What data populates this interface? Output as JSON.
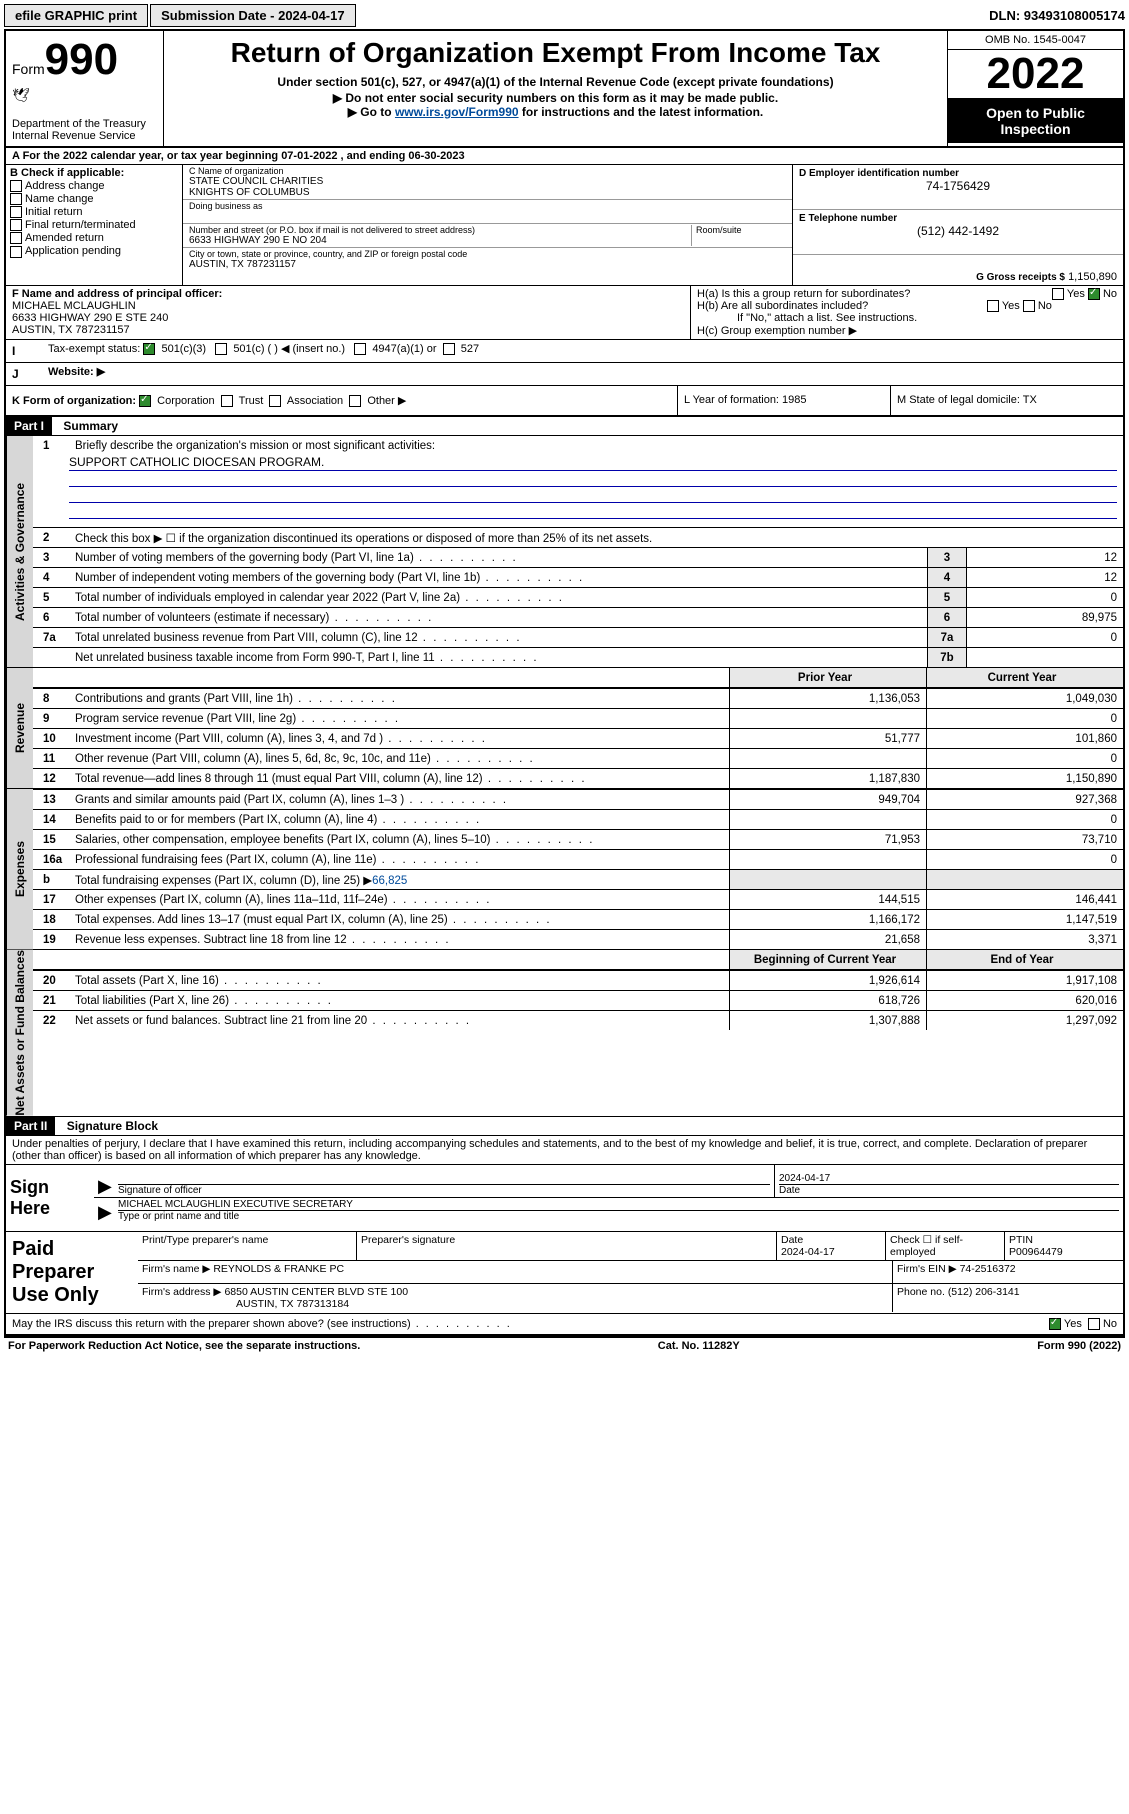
{
  "top": {
    "efile": "efile GRAPHIC print",
    "submission": "Submission Date - 2024-04-17",
    "dln": "DLN: 93493108005174"
  },
  "header": {
    "form_prefix": "Form",
    "form_number": "990",
    "title": "Return of Organization Exempt From Income Tax",
    "subtitle": "Under section 501(c), 527, or 4947(a)(1) of the Internal Revenue Code (except private foundations)",
    "note1": "▶ Do not enter social security numbers on this form as it may be made public.",
    "note2_pre": "▶ Go to ",
    "note2_link": "www.irs.gov/Form990",
    "note2_post": " for instructions and the latest information.",
    "dept": "Department of the Treasury",
    "irs": "Internal Revenue Service",
    "omb": "OMB No. 1545-0047",
    "year": "2022",
    "inspect1": "Open to Public",
    "inspect2": "Inspection"
  },
  "rowA": "A For the 2022 calendar year, or tax year beginning 07-01-2022   , and ending 06-30-2023",
  "sectionB": {
    "title": "B Check if applicable:",
    "items": [
      "Address change",
      "Name change",
      "Initial return",
      "Final return/terminated",
      "Amended return",
      "Application pending"
    ]
  },
  "org": {
    "c_label": "C Name of organization",
    "name1": "STATE COUNCIL CHARITIES",
    "name2": "KNIGHTS OF COLUMBUS",
    "dba_label": "Doing business as",
    "addr_label": "Number and street (or P.O. box if mail is not delivered to street address)",
    "room_label": "Room/suite",
    "addr": "6633 HIGHWAY 290 E NO 204",
    "city_label": "City or town, state or province, country, and ZIP or foreign postal code",
    "city": "AUSTIN, TX  787231157"
  },
  "right": {
    "d_label": "D Employer identification number",
    "ein": "74-1756429",
    "e_label": "E Telephone number",
    "phone": "(512) 442-1492",
    "g_label": "G Gross receipts $",
    "g_val": "1,150,890"
  },
  "f": {
    "label": "F Name and address of principal officer:",
    "name": "MICHAEL MCLAUGHLIN",
    "addr1": "6633 HIGHWAY 290 E STE 240",
    "addr2": "AUSTIN, TX  787231157"
  },
  "h": {
    "a": "H(a)  Is this a group return for subordinates?",
    "b": "H(b)  Are all subordinates included?",
    "note": "If \"No,\" attach a list. See instructions.",
    "c": "H(c)  Group exemption number ▶"
  },
  "i": {
    "label": "Tax-exempt status:",
    "opt1": "501(c)(3)",
    "opt2": "501(c) (   ) ◀ (insert no.)",
    "opt3": "4947(a)(1) or",
    "opt4": "527"
  },
  "j": "Website: ▶",
  "k": "K Form of organization:",
  "k_opts": [
    "Corporation",
    "Trust",
    "Association",
    "Other ▶"
  ],
  "l": "L Year of formation: 1985",
  "m": "M State of legal domicile: TX",
  "part1": "Part I",
  "part1_title": "Summary",
  "part2": "Part II",
  "part2_title": "Signature Block",
  "mission_q": "Briefly describe the organization's mission or most significant activities:",
  "mission": "SUPPORT CATHOLIC DIOCESAN PROGRAM.",
  "q2": "Check this box ▶ ☐  if the organization discontinued its operations or disposed of more than 25% of its net assets.",
  "lines_single": [
    {
      "n": "3",
      "t": "Number of voting members of the governing body (Part VI, line 1a)",
      "box": "3",
      "v": "12"
    },
    {
      "n": "4",
      "t": "Number of independent voting members of the governing body (Part VI, line 1b)",
      "box": "4",
      "v": "12"
    },
    {
      "n": "5",
      "t": "Total number of individuals employed in calendar year 2022 (Part V, line 2a)",
      "box": "5",
      "v": "0"
    },
    {
      "n": "6",
      "t": "Total number of volunteers (estimate if necessary)",
      "box": "6",
      "v": "89,975"
    },
    {
      "n": "7a",
      "t": "Total unrelated business revenue from Part VIII, column (C), line 12",
      "box": "7a",
      "v": "0"
    },
    {
      "n": "",
      "t": "Net unrelated business taxable income from Form 990-T, Part I, line 11",
      "box": "7b",
      "v": ""
    }
  ],
  "col_hdr": {
    "prior": "Prior Year",
    "current": "Current Year",
    "boy": "Beginning of Current Year",
    "eoy": "End of Year"
  },
  "rev": [
    {
      "n": "8",
      "t": "Contributions and grants (Part VIII, line 1h)",
      "p": "1,136,053",
      "c": "1,049,030"
    },
    {
      "n": "9",
      "t": "Program service revenue (Part VIII, line 2g)",
      "p": "",
      "c": "0"
    },
    {
      "n": "10",
      "t": "Investment income (Part VIII, column (A), lines 3, 4, and 7d )",
      "p": "51,777",
      "c": "101,860"
    },
    {
      "n": "11",
      "t": "Other revenue (Part VIII, column (A), lines 5, 6d, 8c, 9c, 10c, and 11e)",
      "p": "",
      "c": "0"
    },
    {
      "n": "12",
      "t": "Total revenue—add lines 8 through 11 (must equal Part VIII, column (A), line 12)",
      "p": "1,187,830",
      "c": "1,150,890"
    }
  ],
  "exp": [
    {
      "n": "13",
      "t": "Grants and similar amounts paid (Part IX, column (A), lines 1–3 )",
      "p": "949,704",
      "c": "927,368"
    },
    {
      "n": "14",
      "t": "Benefits paid to or for members (Part IX, column (A), line 4)",
      "p": "",
      "c": "0"
    },
    {
      "n": "15",
      "t": "Salaries, other compensation, employee benefits (Part IX, column (A), lines 5–10)",
      "p": "71,953",
      "c": "73,710"
    },
    {
      "n": "16a",
      "t": "Professional fundraising fees (Part IX, column (A), line 11e)",
      "p": "",
      "c": "0"
    }
  ],
  "line16b_pre": "Total fundraising expenses (Part IX, column (D), line 25) ▶",
  "line16b_val": "66,825",
  "exp2": [
    {
      "n": "17",
      "t": "Other expenses (Part IX, column (A), lines 11a–11d, 11f–24e)",
      "p": "144,515",
      "c": "146,441"
    },
    {
      "n": "18",
      "t": "Total expenses. Add lines 13–17 (must equal Part IX, column (A), line 25)",
      "p": "1,166,172",
      "c": "1,147,519"
    },
    {
      "n": "19",
      "t": "Revenue less expenses. Subtract line 18 from line 12",
      "p": "21,658",
      "c": "3,371"
    }
  ],
  "net": [
    {
      "n": "20",
      "t": "Total assets (Part X, line 16)",
      "p": "1,926,614",
      "c": "1,917,108"
    },
    {
      "n": "21",
      "t": "Total liabilities (Part X, line 26)",
      "p": "618,726",
      "c": "620,016"
    },
    {
      "n": "22",
      "t": "Net assets or fund balances. Subtract line 21 from line 20",
      "p": "1,307,888",
      "c": "1,297,092"
    }
  ],
  "tabs": {
    "gov": "Activities & Governance",
    "rev": "Revenue",
    "exp": "Expenses",
    "net": "Net Assets or Fund Balances"
  },
  "penalty": "Under penalties of perjury, I declare that I have examined this return, including accompanying schedules and statements, and to the best of my knowledge and belief, it is true, correct, and complete. Declaration of preparer (other than officer) is based on all information of which preparer has any knowledge.",
  "sign": {
    "here": "Sign Here",
    "sig_label": "Signature of officer",
    "date_label": "Date",
    "date": "2024-04-17",
    "name": "MICHAEL MCLAUGHLIN  EXECUTIVE SECRETARY",
    "name_label": "Type or print name and title"
  },
  "prep": {
    "title": "Paid Preparer Use Only",
    "h1": "Print/Type preparer's name",
    "h2": "Preparer's signature",
    "h3": "Date",
    "date": "2024-04-17",
    "h4": "Check ☐ if self-employed",
    "h5": "PTIN",
    "ptin": "P00964479",
    "firm_label": "Firm's name    ▶",
    "firm": "REYNOLDS & FRANKE PC",
    "ein_label": "Firm's EIN ▶",
    "ein": "74-2516372",
    "addr_label": "Firm's address ▶",
    "addr1": "6850 AUSTIN CENTER BLVD STE 100",
    "addr2": "AUSTIN, TX  787313184",
    "phone_label": "Phone no.",
    "phone": "(512) 206-3141"
  },
  "discuss": "May the IRS discuss this return with the preparer shown above? (see instructions)",
  "footer": {
    "l": "For Paperwork Reduction Act Notice, see the separate instructions.",
    "m": "Cat. No. 11282Y",
    "r": "Form 990 (2022)"
  }
}
